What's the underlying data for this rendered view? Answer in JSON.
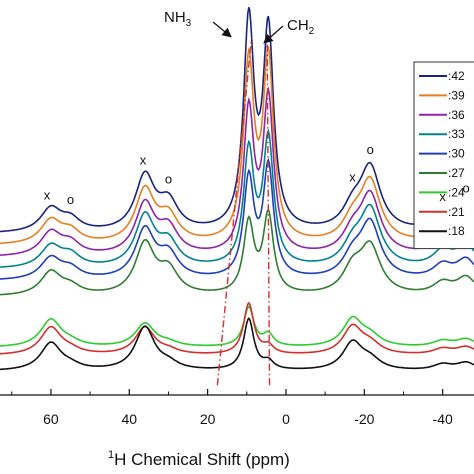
{
  "chart_data": {
    "type": "line",
    "title": "",
    "xlabel_sup": "1",
    "xlabel_main": "H Chemical Shift (ppm)",
    "ylabel": "",
    "xlim": [
      73,
      -48
    ],
    "x_reversed": true,
    "x_ticks": [
      60,
      40,
      20,
      0,
      -20,
      -40
    ],
    "x_tick_labels": [
      "60",
      "40",
      "20",
      "0",
      "-20",
      "-40"
    ],
    "grid": false,
    "legend_placement": "right",
    "legend_order_top_to_bottom": [
      0,
      1,
      2,
      3,
      4,
      5,
      6,
      7,
      8
    ],
    "peaks_common": [
      {
        "pos": 60,
        "width": 3.2
      },
      {
        "pos": 55,
        "width": 3.0
      },
      {
        "pos": 36,
        "width": 3.0
      },
      {
        "pos": 30,
        "width": 3.0
      },
      {
        "pos": 9.5,
        "width": 1.6
      },
      {
        "pos": 4.5,
        "width": 1.6
      },
      {
        "pos": -17,
        "width": 3.0
      },
      {
        "pos": -21.5,
        "width": 3.2
      },
      {
        "pos": -40,
        "width": 3.0
      },
      {
        "pos": -46,
        "width": 3.0
      }
    ],
    "series": [
      {
        "name": ":42",
        "color": "#1a237e",
        "baseline": 22,
        "tilt": 0.0,
        "amps": [
          12,
          6,
          28,
          14,
          105,
          100,
          10,
          32,
          8,
          14
        ]
      },
      {
        "name": ":39",
        "color": "#e67e22",
        "baseline": 16,
        "tilt": 0.0,
        "amps": [
          12,
          6,
          27,
          13,
          90,
          92,
          10,
          31,
          8,
          13
        ]
      },
      {
        "name": ":36",
        "color": "#8e24aa",
        "baseline": 10,
        "tilt": 0.0,
        "amps": [
          12,
          6,
          26,
          13,
          72,
          78,
          10,
          30,
          8,
          12
        ]
      },
      {
        "name": ":33",
        "color": "#00838f",
        "baseline": 4,
        "tilt": 0.0,
        "amps": [
          11,
          6,
          26,
          12,
          58,
          64,
          10,
          29,
          8,
          11
        ]
      },
      {
        "name": ":30",
        "color": "#1f3fb6",
        "baseline": -2,
        "tilt": 0.0,
        "amps": [
          11,
          5,
          25,
          12,
          50,
          56,
          10,
          28,
          7,
          10
        ]
      },
      {
        "name": ":27",
        "color": "#2e7d32",
        "baseline": -10,
        "tilt": 0.0,
        "amps": [
          12,
          4,
          26,
          12,
          36,
          40,
          12,
          24,
          6,
          9
        ]
      },
      {
        "name": ":24",
        "color": "#2ecc2e",
        "baseline": -36,
        "tilt": 0.0,
        "amps": [
          14,
          2,
          12,
          2,
          20,
          6,
          14,
          5,
          3,
          4
        ]
      },
      {
        "name": ":21",
        "color": "#d32f2f",
        "baseline": -40,
        "tilt": 0.0,
        "amps": [
          14,
          2,
          14,
          2,
          26,
          4,
          14,
          5,
          3,
          4
        ]
      },
      {
        "name": ":18",
        "color": "#111111",
        "baseline": -48,
        "tilt": 0.0,
        "amps": [
          14,
          2,
          22,
          3,
          26,
          4,
          14,
          5,
          3,
          4
        ]
      }
    ],
    "ref_lines": [
      {
        "x1": 17.5,
        "y1": -55,
        "x2": 8.8,
        "y2": 122
      },
      {
        "x1": 4.2,
        "y1": -55,
        "x2": 4.8,
        "y2": 122
      }
    ],
    "annotations": {
      "nh3_main": "NH",
      "nh3_sub": "3",
      "ch2_main": "CH",
      "ch2_sub": "2",
      "markers": [
        {
          "label": "x",
          "x": 61
        },
        {
          "label": "o",
          "x": 55
        },
        {
          "label": "x",
          "x": 36.5
        },
        {
          "label": "o",
          "x": 30
        },
        {
          "label": "x",
          "x": -17
        },
        {
          "label": "o",
          "x": -21.5
        },
        {
          "label": "x",
          "x": -40
        },
        {
          "label": "o",
          "x": -46
        }
      ]
    }
  }
}
